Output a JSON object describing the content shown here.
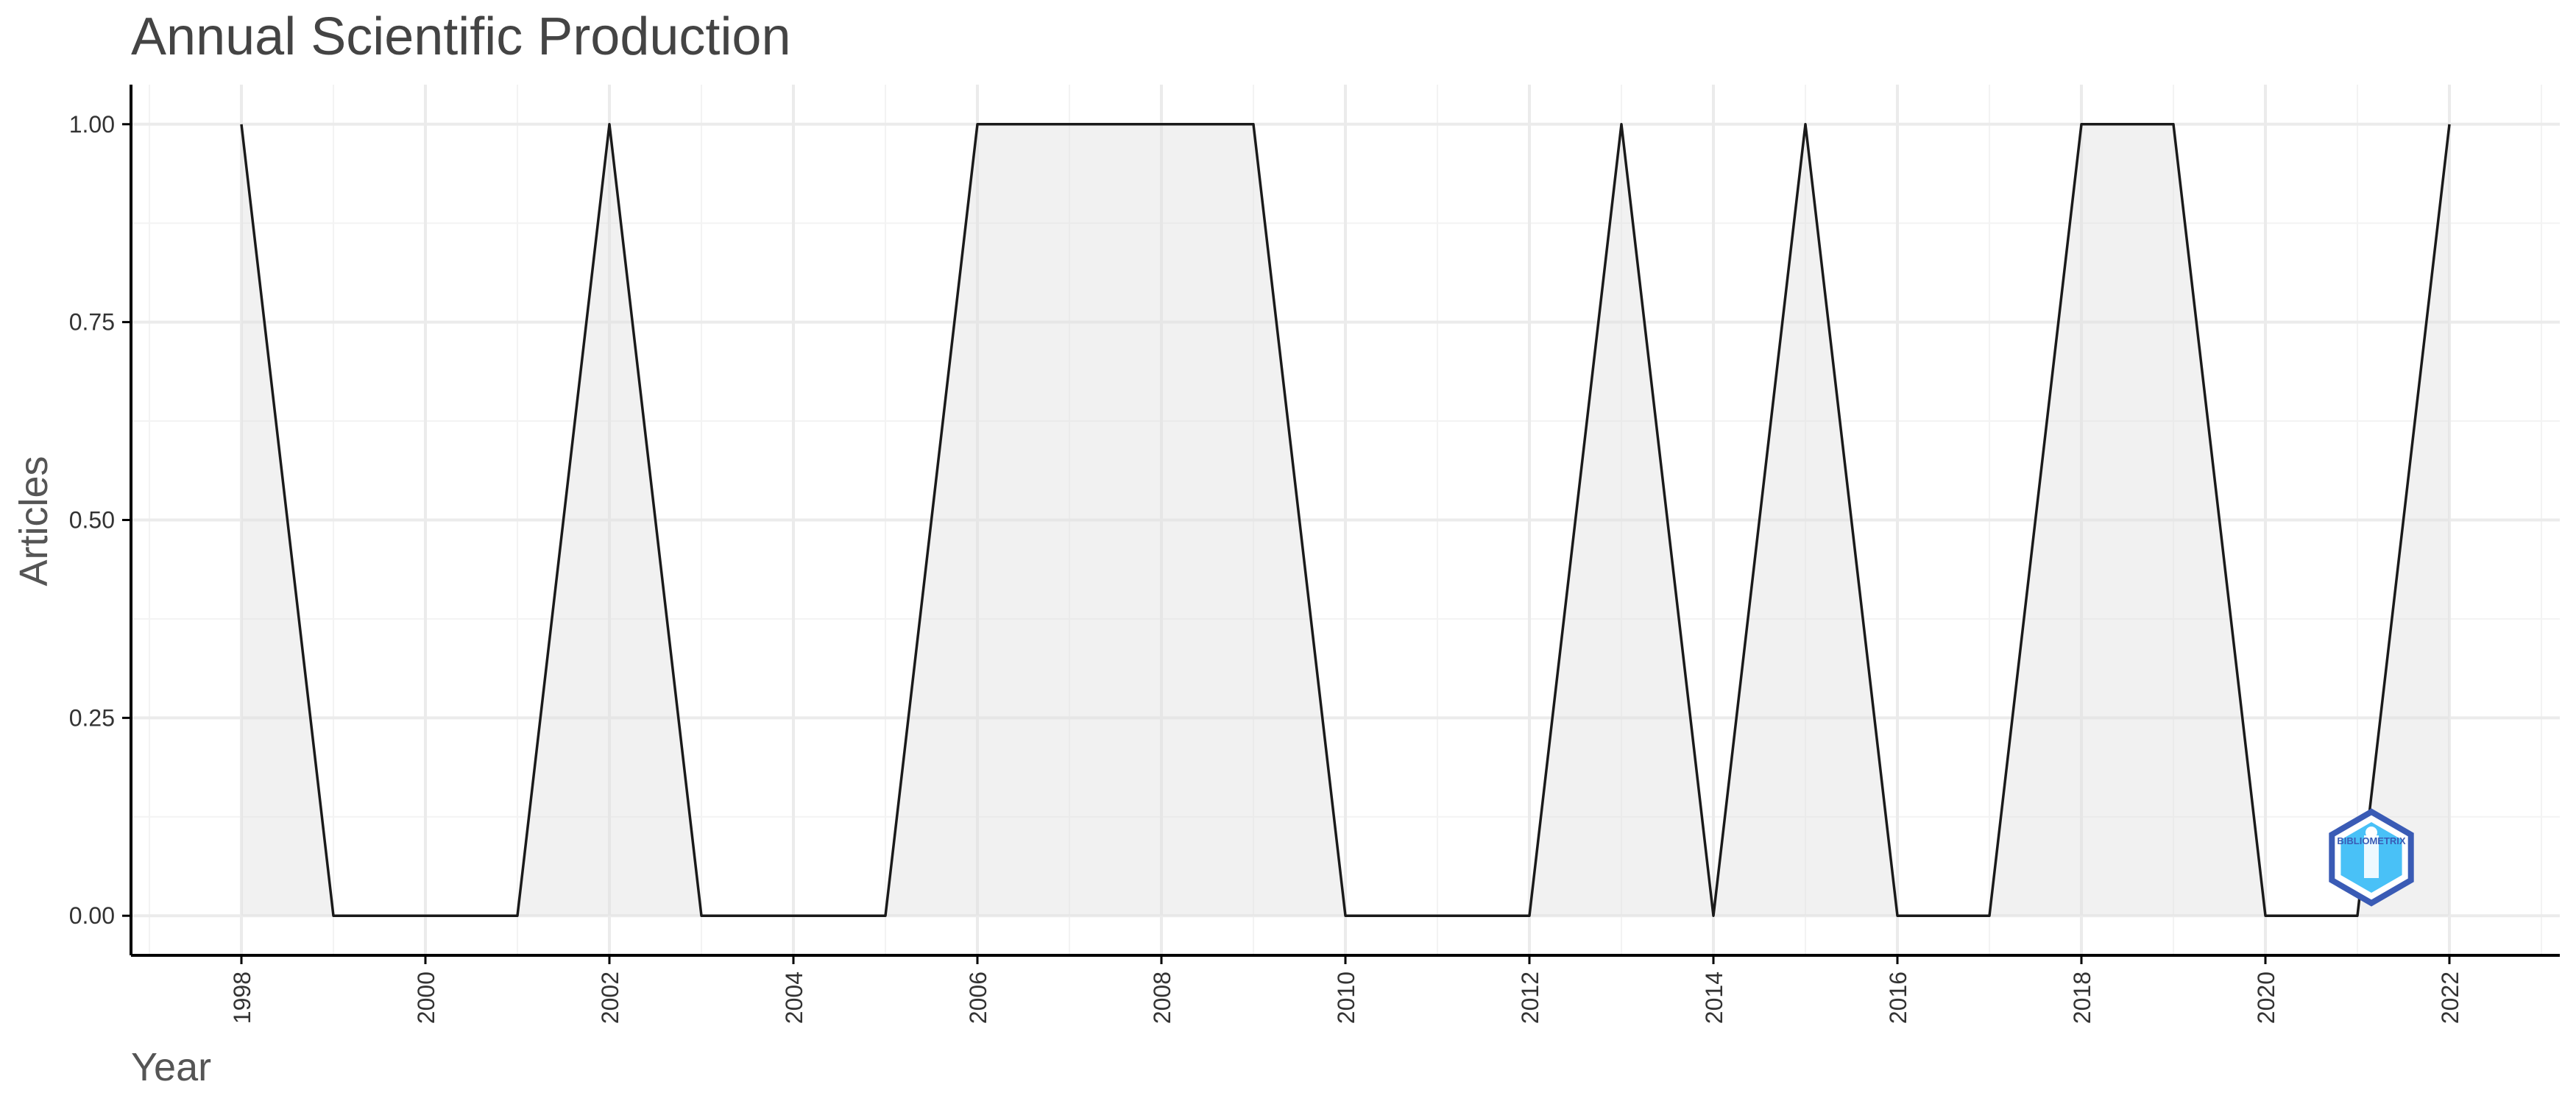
{
  "chart_data": {
    "type": "area",
    "title": "Annual Scientific Production",
    "xlabel": "Year",
    "ylabel": "Articles",
    "x": [
      1998,
      1999,
      2000,
      2001,
      2002,
      2003,
      2004,
      2005,
      2006,
      2007,
      2008,
      2009,
      2010,
      2011,
      2012,
      2013,
      2014,
      2015,
      2016,
      2017,
      2018,
      2019,
      2020,
      2021,
      2022
    ],
    "values": [
      1,
      0,
      0,
      0,
      1,
      0,
      0,
      0,
      1,
      1,
      1,
      1,
      0,
      0,
      0,
      1,
      0,
      1,
      0,
      0,
      1,
      1,
      0,
      0,
      1
    ],
    "xlim": [
      1996.8,
      2023.2
    ],
    "ylim": [
      -0.05,
      1.05
    ],
    "x_ticks": [
      "1998",
      "2000",
      "2002",
      "2004",
      "2006",
      "2008",
      "2010",
      "2012",
      "2014",
      "2016",
      "2018",
      "2020",
      "2022"
    ],
    "y_ticks": [
      "0.00",
      "0.25",
      "0.50",
      "0.75",
      "1.00"
    ],
    "grid": true,
    "legend": "none",
    "colors": {
      "line": "#1a1a1a",
      "area": "#e0e0e0",
      "grid": "#ebebeb",
      "logo_dark": "#3a5bb5",
      "logo_light": "#29b6f6"
    },
    "watermark": {
      "icon": "bibliometrix-logo",
      "text": "BIBLIOMETRIX"
    }
  }
}
